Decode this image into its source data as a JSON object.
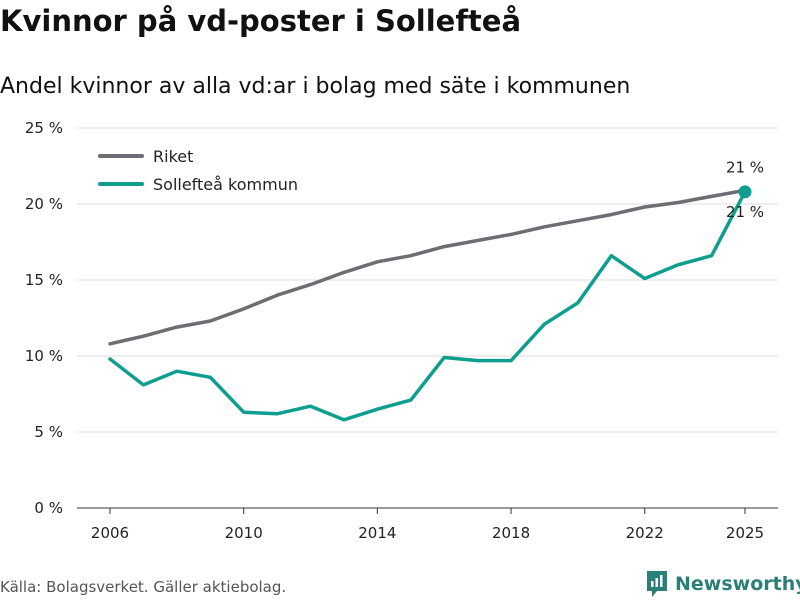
{
  "title": "Kvinnor på vd-poster i Sollefteå",
  "subtitle": "Andel kvinnor av alla vd:ar i bolag med säte i kommunen",
  "source": "Källa: Bolagsverket. Gäller aktiebolag.",
  "brand": {
    "name": "Newsworthy",
    "icon": "newsworthy-logo-icon"
  },
  "colors": {
    "riket": "#6e6d73",
    "kommun": "#0e9e90",
    "grid": "#dddddd",
    "axis": "#333333"
  },
  "chart_data": {
    "type": "line",
    "title": "Kvinnor på vd-poster i Sollefteå",
    "subtitle": "Andel kvinnor av alla vd:ar i bolag med säte i kommunen",
    "xlabel": "",
    "ylabel": "",
    "x": [
      2006,
      2007,
      2008,
      2009,
      2010,
      2011,
      2012,
      2013,
      2014,
      2015,
      2016,
      2017,
      2018,
      2019,
      2020,
      2021,
      2022,
      2023,
      2024,
      2025
    ],
    "xlim": [
      2006,
      2025
    ],
    "xticks": [
      2006,
      2010,
      2014,
      2018,
      2022,
      2025
    ],
    "xtick_labels": [
      "2006",
      "2010",
      "2014",
      "2018",
      "2022",
      "2025"
    ],
    "ylim": [
      0,
      25
    ],
    "yticks": [
      0,
      5,
      10,
      15,
      20,
      25
    ],
    "ytick_labels": [
      "0 %",
      "5 %",
      "10 %",
      "15 %",
      "20 %",
      "25 %"
    ],
    "grid": true,
    "legend": "top-left",
    "series": [
      {
        "name": "Riket",
        "color": "#6e6d73",
        "values": [
          10.8,
          11.3,
          11.9,
          12.3,
          13.1,
          14.0,
          14.7,
          15.5,
          16.2,
          16.6,
          17.2,
          17.6,
          18.0,
          18.5,
          18.9,
          19.3,
          19.8,
          20.1,
          20.5,
          20.9
        ]
      },
      {
        "name": "Sollefteå kommun",
        "color": "#0e9e90",
        "values": [
          9.8,
          8.1,
          9.0,
          8.6,
          6.3,
          6.2,
          6.7,
          5.8,
          6.5,
          7.1,
          9.9,
          9.7,
          9.7,
          12.1,
          13.5,
          16.6,
          15.1,
          16.0,
          16.6,
          20.8
        ]
      }
    ],
    "annotations": [
      {
        "series": "Riket",
        "x": 2025,
        "label": "21 %",
        "position": "above"
      },
      {
        "series": "Sollefteå kommun",
        "x": 2025,
        "label": "21 %",
        "position": "below"
      }
    ]
  }
}
